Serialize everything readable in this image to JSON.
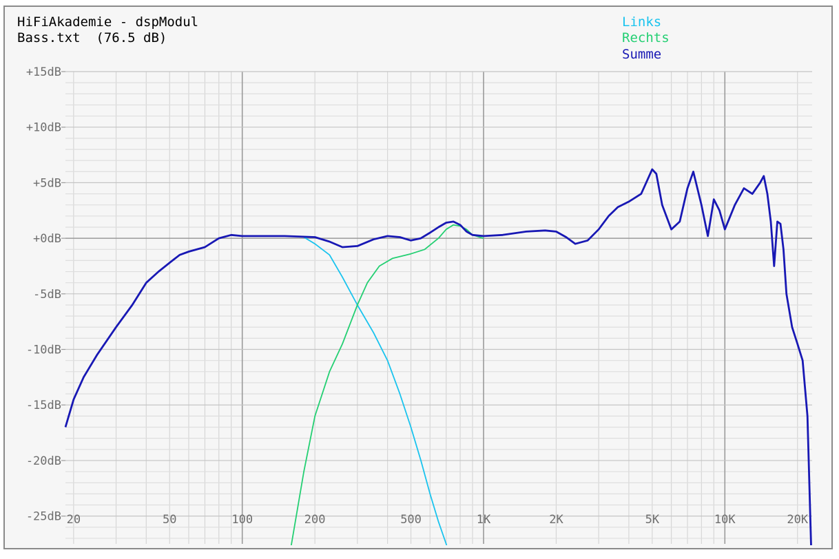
{
  "chart_data": {
    "type": "line",
    "title": "HiFiAkademie - dspModul",
    "subtitle": "Bass.txt  (76.5 dB)",
    "xlabel": "",
    "ylabel": "",
    "xscale": "log",
    "xlim": [
      18.5,
      23000
    ],
    "ylim": [
      -27.5,
      15
    ],
    "grid": true,
    "legend_position": "top-right",
    "x_ticks": [
      {
        "value": 20,
        "label": "20"
      },
      {
        "value": 50,
        "label": "50"
      },
      {
        "value": 100,
        "label": "100"
      },
      {
        "value": 200,
        "label": "200"
      },
      {
        "value": 500,
        "label": "500"
      },
      {
        "value": 1000,
        "label": "1K"
      },
      {
        "value": 2000,
        "label": "2K"
      },
      {
        "value": 5000,
        "label": "5K"
      },
      {
        "value": 10000,
        "label": "10K"
      },
      {
        "value": 20000,
        "label": "20K"
      }
    ],
    "y_ticks": [
      {
        "value": 15,
        "label": "+15dB"
      },
      {
        "value": 10,
        "label": "+10dB"
      },
      {
        "value": 5,
        "label": "+5dB"
      },
      {
        "value": 0,
        "label": "+0dB"
      },
      {
        "value": -5,
        "label": "-5dB"
      },
      {
        "value": -10,
        "label": "-10dB"
      },
      {
        "value": -15,
        "label": "-15dB"
      },
      {
        "value": -20,
        "label": "-20dB"
      },
      {
        "value": -25,
        "label": "-25dB"
      }
    ],
    "series": [
      {
        "name": "Links",
        "color": "#19c3ee",
        "x": [
          180,
          200,
          230,
          260,
          300,
          350,
          400,
          450,
          500,
          550,
          600,
          650,
          700,
          750
        ],
        "y": [
          0.1,
          -0.5,
          -1.5,
          -3.5,
          -6,
          -8.5,
          -11,
          -14,
          -17,
          -20,
          -23,
          -25.5,
          -27.5,
          -30
        ]
      },
      {
        "name": "Rechts",
        "color": "#23cf72",
        "x": [
          150,
          160,
          180,
          200,
          230,
          260,
          300,
          330,
          370,
          420,
          500,
          570,
          650,
          700,
          750,
          800,
          850,
          900,
          1000
        ],
        "y": [
          -31,
          -27.5,
          -21,
          -16,
          -12,
          -9.5,
          -6,
          -4,
          -2.5,
          -1.8,
          -1.4,
          -1,
          0,
          0.8,
          1.2,
          1.1,
          0.8,
          0.3,
          0
        ]
      },
      {
        "name": "Summe",
        "color": "#1818b4",
        "x": [
          18.5,
          20,
          22,
          25,
          30,
          35,
          40,
          45,
          50,
          55,
          60,
          70,
          80,
          90,
          100,
          120,
          150,
          200,
          230,
          260,
          300,
          350,
          400,
          450,
          500,
          550,
          600,
          650,
          700,
          750,
          800,
          850,
          900,
          1000,
          1200,
          1500,
          1800,
          2000,
          2200,
          2400,
          2700,
          3000,
          3300,
          3600,
          4000,
          4500,
          5000,
          5200,
          5500,
          6000,
          6500,
          7000,
          7400,
          8000,
          8500,
          9000,
          9500,
          10000,
          11000,
          12000,
          13000,
          14000,
          14500,
          15000,
          15500,
          16000,
          16500,
          17000,
          17500,
          18000,
          19000,
          20000,
          21000,
          22000,
          23000
        ],
        "y": [
          -17,
          -14.5,
          -12.5,
          -10.5,
          -8,
          -6,
          -4,
          -3,
          -2.2,
          -1.5,
          -1.2,
          -0.8,
          0,
          0.3,
          0.2,
          0.2,
          0.2,
          0.1,
          -0.3,
          -0.8,
          -0.7,
          -0.1,
          0.2,
          0.1,
          -0.2,
          0,
          0.5,
          1,
          1.4,
          1.5,
          1.2,
          0.6,
          0.3,
          0.2,
          0.3,
          0.6,
          0.7,
          0.6,
          0.1,
          -0.5,
          -0.2,
          0.8,
          2,
          2.8,
          3.3,
          4,
          6.2,
          5.8,
          3,
          0.8,
          1.5,
          4.5,
          6,
          3,
          0.2,
          3.5,
          2.5,
          0.8,
          3,
          4.5,
          4,
          5,
          5.6,
          4,
          1.5,
          -2.5,
          1.5,
          1.3,
          -1,
          -5,
          -8,
          -9.5,
          -11,
          -16,
          -31
        ]
      }
    ]
  }
}
